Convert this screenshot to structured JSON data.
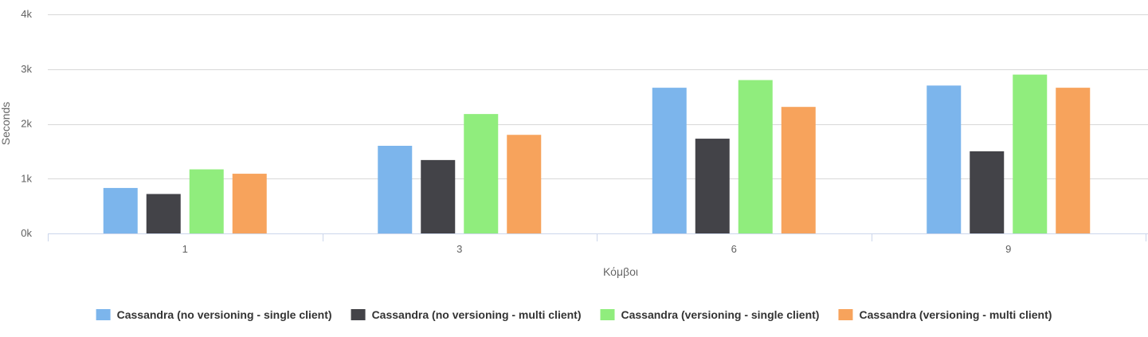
{
  "chart_data": {
    "type": "bar",
    "title": "",
    "xlabel": "Κόμβοι",
    "ylabel": "Seconds",
    "categories": [
      "1",
      "3",
      "6",
      "9"
    ],
    "ylim": [
      0,
      4000
    ],
    "yticks": [
      0,
      1000,
      2000,
      3000,
      4000
    ],
    "ytick_labels": [
      "0k",
      "1k",
      "2k",
      "3k",
      "4k"
    ],
    "grid": true,
    "legend_position": "bottom",
    "series": [
      {
        "name": "Cassandra (no versioning - single client)",
        "color": "#7cb5ec",
        "values": [
          830,
          1600,
          2660,
          2700
        ]
      },
      {
        "name": "Cassandra (no versioning - multi client)",
        "color": "#434348",
        "values": [
          720,
          1340,
          1730,
          1500
        ]
      },
      {
        "name": "Cassandra (versioning - single client)",
        "color": "#90ed7d",
        "values": [
          1170,
          2180,
          2800,
          2900
        ]
      },
      {
        "name": "Cassandra (versioning - multi client)",
        "color": "#f7a35c",
        "values": [
          1090,
          1800,
          2310,
          2660
        ]
      }
    ]
  }
}
